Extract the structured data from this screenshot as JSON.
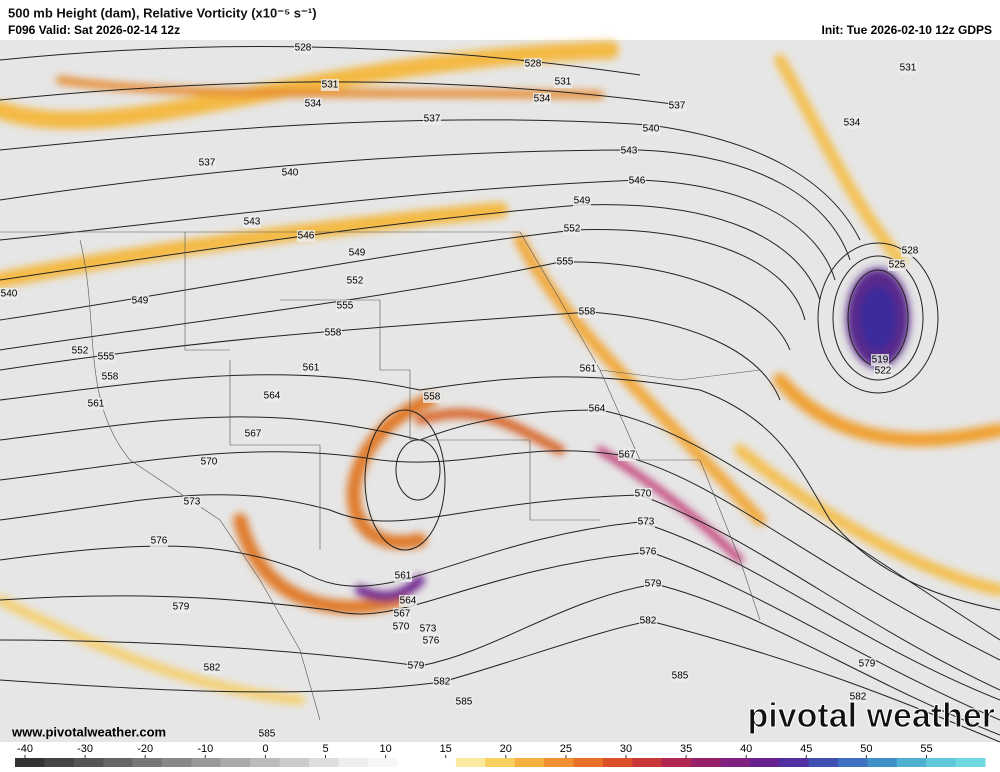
{
  "header": {
    "title": "500 mb Height (dam), Relative Vorticity (x10⁻⁵ s⁻¹)",
    "valid": "F096 Valid: Sat 2026-02-14 12z",
    "init": "Init: Tue 2026-02-10 12z GDPS"
  },
  "contour_labels": [
    "528",
    "528",
    "531",
    "531",
    "534",
    "534",
    "537",
    "537",
    "531",
    "534",
    "540",
    "543",
    "546",
    "549",
    "552",
    "555",
    "558",
    "561",
    "564",
    "567",
    "570",
    "573",
    "576",
    "579",
    "582",
    "585",
    "579",
    "582",
    "537",
    "540",
    "543",
    "546",
    "549",
    "552",
    "555",
    "558",
    "561",
    "564",
    "567",
    "570",
    "573",
    "576",
    "579",
    "582",
    "585",
    "540",
    "549",
    "552",
    "555",
    "558",
    "561",
    "558",
    "561",
    "564",
    "567",
    "570",
    "573",
    "576",
    "579",
    "582",
    "585",
    "525",
    "528",
    "519",
    "522"
  ],
  "footer": {
    "website": "www.pivotalweather.com",
    "logo": "pivotal weather"
  },
  "colorbar": {
    "ticks": [
      -40,
      -30,
      -20,
      -10,
      0,
      5,
      10,
      15,
      20,
      25,
      30,
      35,
      40,
      45,
      50,
      55
    ]
  }
}
